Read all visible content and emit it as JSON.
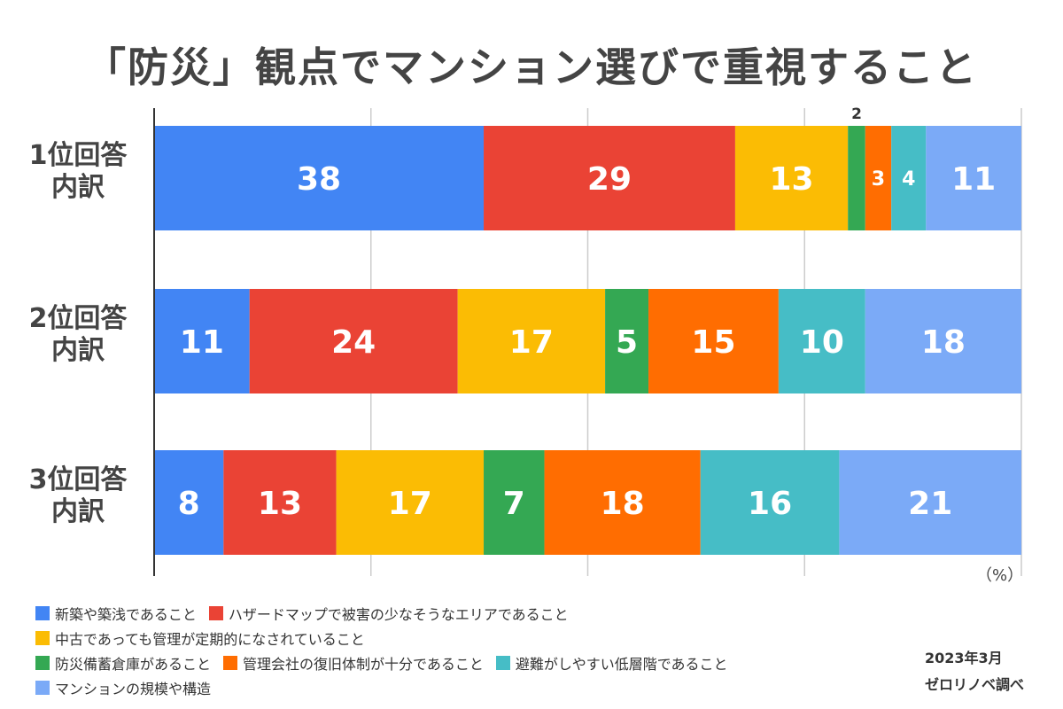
{
  "title": "「防災」観点でマンション選びで重視すること",
  "unit": "（%）",
  "source_date": "2023年3月",
  "source_name": "ゼロリノベ調べ",
  "colors": [
    "#4285f4",
    "#ea4335",
    "#fbbc04",
    "#34a853",
    "#ff6d01",
    "#46bdc6",
    "#7baaf7"
  ],
  "legend_rows": [
    [
      0,
      1
    ],
    [
      2
    ],
    [
      3,
      4,
      5
    ],
    [
      6
    ]
  ],
  "chart_data": {
    "type": "bar",
    "stacked": true,
    "orientation": "horizontal",
    "categories": [
      "1位回答\n内訳",
      "2位回答\n内訳",
      "3位回答\n内訳"
    ],
    "series": [
      {
        "name": "新築や築浅であること",
        "values": [
          38,
          11,
          8
        ]
      },
      {
        "name": "ハザードマップで被害の少なそうなエリアであること",
        "values": [
          29,
          24,
          13
        ]
      },
      {
        "name": "中古であっても管理が定期的になされていること",
        "values": [
          13,
          17,
          17
        ]
      },
      {
        "name": "防災備蓄倉庫があること",
        "values": [
          2,
          5,
          7
        ]
      },
      {
        "name": "管理会社の復旧体制が十分であること",
        "values": [
          3,
          15,
          18
        ]
      },
      {
        "name": "避難がしやすい低層階であること",
        "values": [
          4,
          10,
          16
        ]
      },
      {
        "name": "マンションの規模や構造",
        "values": [
          11,
          18,
          21
        ]
      }
    ],
    "xlim": [
      0,
      100
    ],
    "grid": true,
    "legend_position": "bottom"
  }
}
